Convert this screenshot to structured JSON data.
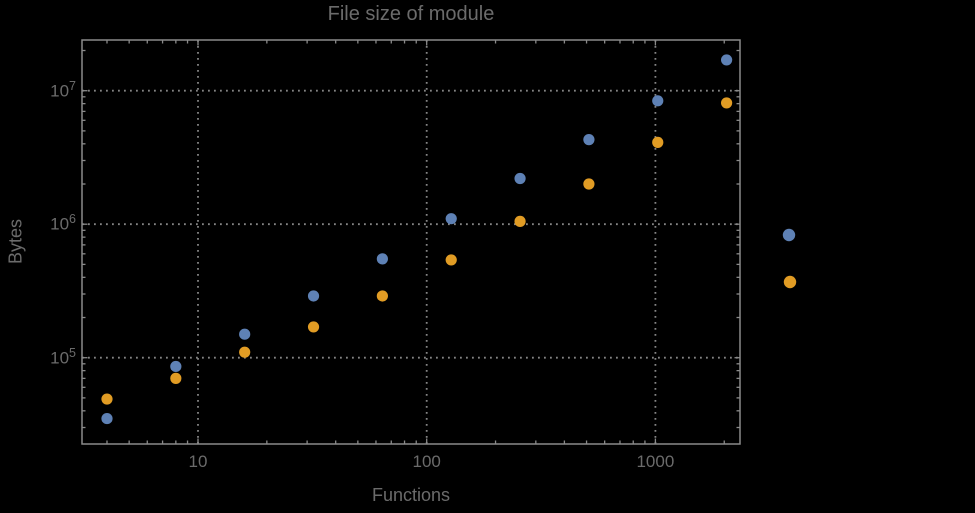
{
  "colors": {
    "background": "#000000",
    "frame": "#8a8a8a",
    "grid": "#858585",
    "text": "#6b6b6b",
    "series_blue": "#5e81b5",
    "series_orange": "#e19c24"
  },
  "chart_data": {
    "type": "scatter",
    "title": "File size of module",
    "xlabel": "Functions",
    "ylabel": "Bytes",
    "xscale": "log",
    "yscale": "log",
    "xlim": [
      3.1,
      2340
    ],
    "ylim": [
      23000,
      24000000
    ],
    "grid": true,
    "grid_style": "dotted",
    "x_tick_values": [
      10,
      100,
      1000
    ],
    "x_tick_labels": [
      "10",
      "100",
      "1000"
    ],
    "y_tick_exponents": [
      5,
      6,
      7
    ],
    "x": [
      4,
      8,
      16,
      32,
      64,
      128,
      256,
      512,
      1024,
      2048
    ],
    "series": [
      {
        "name": "series-blue",
        "color": "#5e81b5",
        "values": [
          35000,
          86000,
          150000,
          290000,
          550000,
          1100000,
          2200000,
          4300000,
          8400000,
          17000000
        ]
      },
      {
        "name": "series-orange",
        "color": "#e19c24",
        "values": [
          49000,
          70000,
          110000,
          170000,
          290000,
          540000,
          1050000,
          2000000,
          4100000,
          8100000
        ]
      }
    ],
    "legend": {
      "position": "right-outside",
      "labels_visible": false,
      "markers": [
        {
          "name": "legend-marker-blue",
          "color": "#5e81b5"
        },
        {
          "name": "legend-marker-orange",
          "color": "#e19c24"
        }
      ]
    }
  }
}
